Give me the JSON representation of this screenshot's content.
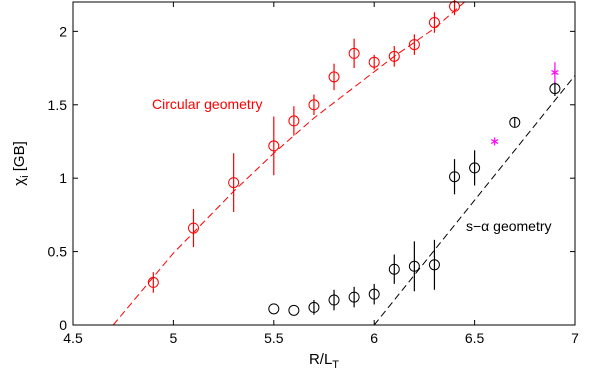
{
  "chart_data": {
    "type": "scatter",
    "title": "",
    "xlabel": "R/L",
    "xlabel_sub": "T",
    "ylabel": "χ",
    "ylabel_sub": "i",
    "ylabel_unit": "[GB]",
    "xlim": [
      4.5,
      7
    ],
    "ylim": [
      0,
      2.2
    ],
    "xticks": [
      4.5,
      5,
      5.5,
      6,
      6.5,
      7
    ],
    "yticks": [
      0,
      0.5,
      1,
      1.5,
      2
    ],
    "xtick_labels": [
      "4.5",
      "5",
      "5.5",
      "6",
      "6.5",
      "7"
    ],
    "ytick_labels": [
      "0",
      "0.5",
      "1",
      "1.5",
      "2"
    ],
    "grid": false,
    "legend": "none",
    "annotations": [
      {
        "text": "Circular geometry",
        "color": "#ff0000"
      },
      {
        "text": "s−α geometry",
        "color": "#000000"
      }
    ],
    "series": [
      {
        "color": "#ff0000",
        "marker": "circle",
        "points": [
          {
            "x": 4.9,
            "y": 0.29,
            "err": 0.07
          },
          {
            "x": 5.1,
            "y": 0.66,
            "err": 0.13
          },
          {
            "x": 5.3,
            "y": 0.97,
            "err": 0.2
          },
          {
            "x": 5.5,
            "y": 1.22,
            "err": 0.2
          },
          {
            "x": 5.6,
            "y": 1.39,
            "err": 0.1
          },
          {
            "x": 5.7,
            "y": 1.5,
            "err": 0.07
          },
          {
            "x": 5.8,
            "y": 1.69,
            "err": 0.09
          },
          {
            "x": 5.9,
            "y": 1.85,
            "err": 0.1
          },
          {
            "x": 6.0,
            "y": 1.79,
            "err": 0.05
          },
          {
            "x": 6.1,
            "y": 1.83,
            "err": 0.07
          },
          {
            "x": 6.2,
            "y": 1.91,
            "err": 0.07
          },
          {
            "x": 6.3,
            "y": 2.06,
            "err": 0.07
          },
          {
            "x": 6.4,
            "y": 2.17,
            "err": 0.06
          }
        ]
      },
      {
        "color": "#000000",
        "marker": "circle",
        "points": [
          {
            "x": 5.5,
            "y": 0.11,
            "err": 0.0
          },
          {
            "x": 5.6,
            "y": 0.1,
            "err": 0.0
          },
          {
            "x": 5.7,
            "y": 0.12,
            "err": 0.05
          },
          {
            "x": 5.8,
            "y": 0.17,
            "err": 0.07
          },
          {
            "x": 5.9,
            "y": 0.19,
            "err": 0.07
          },
          {
            "x": 6.0,
            "y": 0.21,
            "err": 0.07
          },
          {
            "x": 6.1,
            "y": 0.38,
            "err": 0.1
          },
          {
            "x": 6.2,
            "y": 0.4,
            "err": 0.17
          },
          {
            "x": 6.3,
            "y": 0.41,
            "err": 0.17
          },
          {
            "x": 6.4,
            "y": 1.01,
            "err": 0.12
          },
          {
            "x": 6.5,
            "y": 1.07,
            "err": 0.12
          },
          {
            "x": 6.7,
            "y": 1.38,
            "err": 0.03
          },
          {
            "x": 6.9,
            "y": 1.61,
            "err": 0.05
          }
        ]
      },
      {
        "color": "#ff00ff",
        "marker": "asterisk",
        "points": [
          {
            "x": 6.6,
            "y": 1.25,
            "err": 0.0
          },
          {
            "x": 6.9,
            "y": 1.72,
            "err": 0.07
          }
        ]
      }
    ],
    "fit_lines": [
      {
        "color": "#ff0000",
        "style": "dashed",
        "points": [
          [
            4.7,
            0
          ],
          [
            5.0,
            0.49
          ],
          [
            5.3,
            0.91
          ],
          [
            5.5,
            1.17
          ],
          [
            5.7,
            1.41
          ],
          [
            5.9,
            1.62
          ],
          [
            6.1,
            1.83
          ],
          [
            6.3,
            2.02
          ],
          [
            6.45,
            2.2
          ]
        ]
      },
      {
        "color": "#000000",
        "style": "dashed",
        "points": [
          [
            6.0,
            0
          ],
          [
            7.0,
            1.7
          ]
        ]
      }
    ]
  }
}
